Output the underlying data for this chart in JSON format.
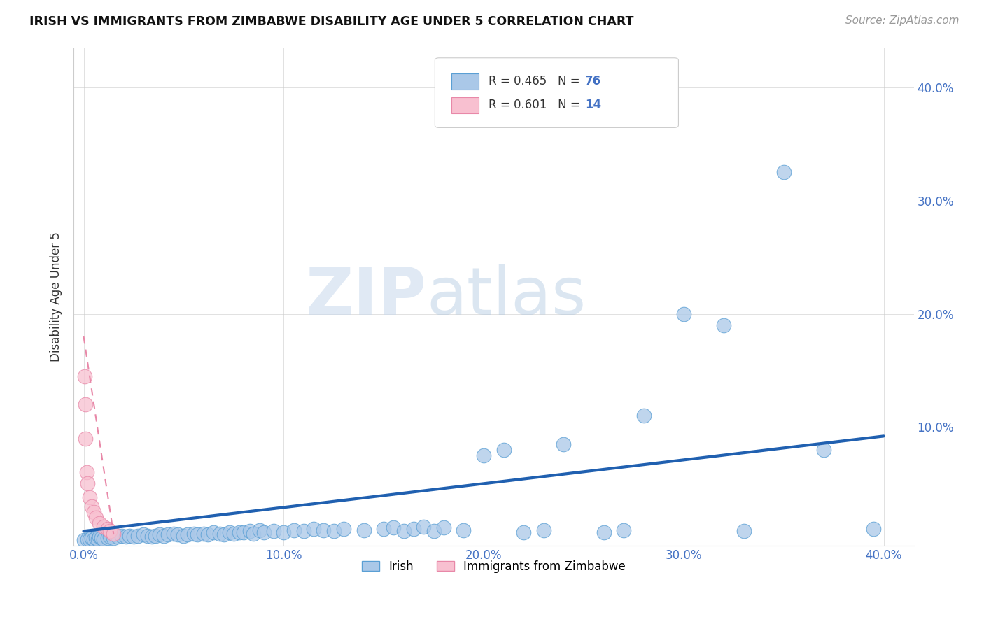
{
  "title": "IRISH VS IMMIGRANTS FROM ZIMBABWE DISABILITY AGE UNDER 5 CORRELATION CHART",
  "source": "Source: ZipAtlas.com",
  "ylabel": "Disability Age Under 5",
  "xlim": [
    -0.005,
    0.415
  ],
  "ylim": [
    -0.005,
    0.435
  ],
  "xticks": [
    0.0,
    0.1,
    0.2,
    0.3,
    0.4
  ],
  "yticks": [
    0.1,
    0.2,
    0.3,
    0.4
  ],
  "xticklabels": [
    "0.0%",
    "10.0%",
    "20.0%",
    "30.0%",
    "40.0%"
  ],
  "yticklabels": [
    "10.0%",
    "20.0%",
    "30.0%",
    "40.0%"
  ],
  "irish_color": "#aac8e8",
  "irish_edge_color": "#5a9fd4",
  "zimbabwe_color": "#f8c0d0",
  "zimbabwe_edge_color": "#e888a8",
  "irish_line_color": "#2060b0",
  "zimbabwe_line_color": "#e888a8",
  "R_irish": 0.465,
  "N_irish": 76,
  "R_zimbabwe": 0.601,
  "N_zimbabwe": 14,
  "irish_x": [
    0.0,
    0.002,
    0.003,
    0.004,
    0.005,
    0.006,
    0.007,
    0.008,
    0.009,
    0.01,
    0.012,
    0.013,
    0.015,
    0.017,
    0.019,
    0.021,
    0.023,
    0.025,
    0.027,
    0.03,
    0.032,
    0.034,
    0.036,
    0.038,
    0.04,
    0.042,
    0.045,
    0.047,
    0.05,
    0.052,
    0.055,
    0.057,
    0.06,
    0.062,
    0.065,
    0.068,
    0.07,
    0.073,
    0.075,
    0.078,
    0.08,
    0.083,
    0.085,
    0.088,
    0.09,
    0.095,
    0.1,
    0.105,
    0.11,
    0.115,
    0.12,
    0.125,
    0.13,
    0.14,
    0.15,
    0.155,
    0.16,
    0.165,
    0.17,
    0.175,
    0.18,
    0.19,
    0.2,
    0.21,
    0.22,
    0.23,
    0.24,
    0.26,
    0.27,
    0.28,
    0.3,
    0.32,
    0.33,
    0.35,
    0.37,
    0.395
  ],
  "irish_y": [
    0.0,
    0.001,
    0.001,
    0.002,
    0.001,
    0.002,
    0.001,
    0.003,
    0.002,
    0.001,
    0.002,
    0.003,
    0.002,
    0.003,
    0.004,
    0.003,
    0.004,
    0.003,
    0.004,
    0.005,
    0.004,
    0.003,
    0.004,
    0.005,
    0.004,
    0.005,
    0.006,
    0.005,
    0.004,
    0.005,
    0.006,
    0.005,
    0.006,
    0.005,
    0.007,
    0.006,
    0.005,
    0.007,
    0.006,
    0.007,
    0.007,
    0.008,
    0.006,
    0.009,
    0.007,
    0.008,
    0.007,
    0.009,
    0.008,
    0.01,
    0.009,
    0.008,
    0.01,
    0.009,
    0.01,
    0.011,
    0.008,
    0.01,
    0.012,
    0.008,
    0.011,
    0.009,
    0.075,
    0.08,
    0.007,
    0.009,
    0.085,
    0.007,
    0.009,
    0.11,
    0.2,
    0.19,
    0.008,
    0.325,
    0.08,
    0.01
  ],
  "zimbabwe_x": [
    0.0005,
    0.0008,
    0.001,
    0.0015,
    0.002,
    0.003,
    0.004,
    0.005,
    0.006,
    0.008,
    0.01,
    0.012,
    0.013,
    0.015
  ],
  "zimbabwe_y": [
    0.145,
    0.12,
    0.09,
    0.06,
    0.05,
    0.038,
    0.03,
    0.025,
    0.02,
    0.015,
    0.012,
    0.01,
    0.008,
    0.006
  ],
  "irish_line_x0": 0.0,
  "irish_line_y0": 0.008,
  "irish_line_x1": 0.4,
  "irish_line_y1": 0.092,
  "zim_line_x0": 0.0,
  "zim_line_y0": 0.18,
  "zim_line_x1": 0.015,
  "zim_line_y1": 0.005,
  "watermark_zip": "ZIP",
  "watermark_atlas": "atlas",
  "background_color": "#ffffff",
  "grid_color": "#cccccc"
}
